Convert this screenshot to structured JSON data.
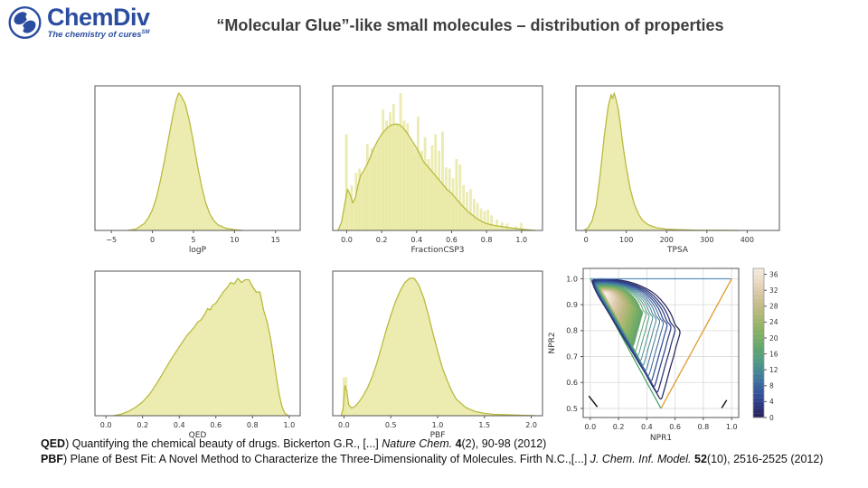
{
  "header": {
    "logo": {
      "name": "ChemDiv",
      "tagline": "The chemistry of cures",
      "tm": "SM"
    },
    "title": "“Molecular Glue”-like small molecules – distribution of properties"
  },
  "colors": {
    "brand_blue": "#2b4da0",
    "title_text": "#3d3d3d",
    "density_fill": "#e9e9a5",
    "density_edge": "#b9ba3f",
    "hist_fill": "#ebebb2",
    "axis": "#555555",
    "tick_text": "#333333",
    "grid": "#d9d9d9",
    "line_blue": "#5b8fc0",
    "line_orange": "#e2a23c",
    "line_green": "#3fa45c",
    "corner_mark": "#1a1a1a",
    "contour_cmap": [
      "#27255c",
      "#2f3a85",
      "#35549b",
      "#3d6e9c",
      "#468a93",
      "#529b82",
      "#62a56f",
      "#7bae64",
      "#97b468",
      "#b3b878",
      "#c9bd90",
      "#dcc9ab",
      "#ecdcc8",
      "#f6ece0"
    ]
  },
  "chart_data": [
    {
      "id": "logP",
      "type": "density",
      "xlabel": "logP",
      "xlim": [
        -7,
        18
      ],
      "xticks": [
        {
          "v": -5,
          "l": "−5"
        },
        {
          "v": 0,
          "l": "0"
        },
        {
          "v": 5,
          "l": "5"
        },
        {
          "v": 10,
          "l": "10"
        },
        {
          "v": 15,
          "l": "15"
        }
      ],
      "curve": [
        [
          -3,
          0
        ],
        [
          -2,
          0.01
        ],
        [
          -1,
          0.05
        ],
        [
          -0.5,
          0.09
        ],
        [
          0,
          0.15
        ],
        [
          0.5,
          0.24
        ],
        [
          1,
          0.37
        ],
        [
          1.5,
          0.52
        ],
        [
          2,
          0.68
        ],
        [
          2.5,
          0.84
        ],
        [
          2.9,
          0.95
        ],
        [
          3.2,
          1.0
        ],
        [
          3.5,
          0.98
        ],
        [
          4,
          0.92
        ],
        [
          4.5,
          0.8
        ],
        [
          5,
          0.64
        ],
        [
          5.5,
          0.47
        ],
        [
          6,
          0.32
        ],
        [
          6.5,
          0.2
        ],
        [
          7,
          0.12
        ],
        [
          7.5,
          0.07
        ],
        [
          8,
          0.04
        ],
        [
          9,
          0.015
        ],
        [
          10,
          0.005
        ],
        [
          11,
          0
        ]
      ]
    },
    {
      "id": "FractionCSP3",
      "type": "density",
      "xlabel": "FractionCSP3",
      "xlim": [
        -0.08,
        1.12
      ],
      "xticks": [
        {
          "v": 0.0,
          "l": "0.0"
        },
        {
          "v": 0.2,
          "l": "0.2"
        },
        {
          "v": 0.4,
          "l": "0.4"
        },
        {
          "v": 0.6,
          "l": "0.6"
        },
        {
          "v": 0.8,
          "l": "0.8"
        },
        {
          "v": 1.0,
          "l": "1.0"
        }
      ],
      "bar_width": 0.018,
      "bars": [
        [
          0.0,
          0.7
        ],
        [
          0.03,
          0.33
        ],
        [
          0.055,
          0.42
        ],
        [
          0.075,
          0.45
        ],
        [
          0.1,
          0.4
        ],
        [
          0.12,
          0.63
        ],
        [
          0.145,
          0.6
        ],
        [
          0.165,
          0.55
        ],
        [
          0.185,
          0.62
        ],
        [
          0.21,
          0.88
        ],
        [
          0.23,
          0.8
        ],
        [
          0.25,
          0.86
        ],
        [
          0.27,
          0.92
        ],
        [
          0.29,
          0.78
        ],
        [
          0.31,
          1.0
        ],
        [
          0.33,
          0.8
        ],
        [
          0.35,
          0.78
        ],
        [
          0.37,
          0.62
        ],
        [
          0.39,
          0.55
        ],
        [
          0.41,
          0.83
        ],
        [
          0.43,
          0.58
        ],
        [
          0.45,
          0.68
        ],
        [
          0.47,
          0.52
        ],
        [
          0.49,
          0.62
        ],
        [
          0.51,
          0.7
        ],
        [
          0.53,
          0.58
        ],
        [
          0.55,
          0.72
        ],
        [
          0.57,
          0.46
        ],
        [
          0.59,
          0.45
        ],
        [
          0.61,
          0.38
        ],
        [
          0.63,
          0.52
        ],
        [
          0.65,
          0.48
        ],
        [
          0.67,
          0.33
        ],
        [
          0.69,
          0.28
        ],
        [
          0.71,
          0.3
        ],
        [
          0.73,
          0.23
        ],
        [
          0.75,
          0.2
        ],
        [
          0.77,
          0.16
        ],
        [
          0.79,
          0.14
        ],
        [
          0.81,
          0.15
        ],
        [
          0.83,
          0.11
        ],
        [
          0.86,
          0.08
        ],
        [
          0.89,
          0.06
        ],
        [
          0.92,
          0.05
        ],
        [
          0.97,
          0.03
        ],
        [
          1.0,
          0.055
        ]
      ],
      "curve": [
        [
          -0.05,
          0
        ],
        [
          -0.03,
          0.06
        ],
        [
          -0.01,
          0.2
        ],
        [
          0.005,
          0.3
        ],
        [
          0.02,
          0.26
        ],
        [
          0.035,
          0.2
        ],
        [
          0.05,
          0.24
        ],
        [
          0.065,
          0.33
        ],
        [
          0.08,
          0.4
        ],
        [
          0.1,
          0.44
        ],
        [
          0.12,
          0.49
        ],
        [
          0.14,
          0.55
        ],
        [
          0.16,
          0.61
        ],
        [
          0.18,
          0.66
        ],
        [
          0.2,
          0.7
        ],
        [
          0.22,
          0.73
        ],
        [
          0.24,
          0.755
        ],
        [
          0.26,
          0.77
        ],
        [
          0.28,
          0.775
        ],
        [
          0.3,
          0.77
        ],
        [
          0.32,
          0.75
        ],
        [
          0.34,
          0.72
        ],
        [
          0.36,
          0.68
        ],
        [
          0.38,
          0.64
        ],
        [
          0.4,
          0.6
        ],
        [
          0.42,
          0.55
        ],
        [
          0.44,
          0.5
        ],
        [
          0.46,
          0.47
        ],
        [
          0.48,
          0.44
        ],
        [
          0.5,
          0.41
        ],
        [
          0.52,
          0.38
        ],
        [
          0.54,
          0.35
        ],
        [
          0.56,
          0.32
        ],
        [
          0.58,
          0.29
        ],
        [
          0.6,
          0.27
        ],
        [
          0.62,
          0.24
        ],
        [
          0.64,
          0.21
        ],
        [
          0.66,
          0.18
        ],
        [
          0.68,
          0.155
        ],
        [
          0.7,
          0.13
        ],
        [
          0.72,
          0.11
        ],
        [
          0.74,
          0.09
        ],
        [
          0.76,
          0.075
        ],
        [
          0.78,
          0.06
        ],
        [
          0.8,
          0.05
        ],
        [
          0.83,
          0.04
        ],
        [
          0.86,
          0.033
        ],
        [
          0.89,
          0.028
        ],
        [
          0.92,
          0.022
        ],
        [
          0.95,
          0.017
        ],
        [
          0.98,
          0.012
        ],
        [
          1.01,
          0.008
        ],
        [
          1.05,
          0.003
        ],
        [
          1.08,
          0
        ]
      ]
    },
    {
      "id": "TPSA",
      "type": "density",
      "xlabel": "TPSA",
      "xlim": [
        -25,
        480
      ],
      "xticks": [
        {
          "v": 0,
          "l": "0"
        },
        {
          "v": 100,
          "l": "100"
        },
        {
          "v": 200,
          "l": "200"
        },
        {
          "v": 300,
          "l": "300"
        },
        {
          "v": 400,
          "l": "400"
        }
      ],
      "curve": [
        [
          -5,
          0
        ],
        [
          5,
          0.02
        ],
        [
          15,
          0.07
        ],
        [
          25,
          0.18
        ],
        [
          35,
          0.4
        ],
        [
          45,
          0.68
        ],
        [
          55,
          0.9
        ],
        [
          62,
          0.99
        ],
        [
          66,
          0.96
        ],
        [
          70,
          1.0
        ],
        [
          74,
          0.96
        ],
        [
          80,
          0.88
        ],
        [
          85,
          0.78
        ],
        [
          90,
          0.66
        ],
        [
          95,
          0.55
        ],
        [
          100,
          0.46
        ],
        [
          110,
          0.3
        ],
        [
          120,
          0.19
        ],
        [
          130,
          0.12
        ],
        [
          140,
          0.075
        ],
        [
          150,
          0.05
        ],
        [
          160,
          0.035
        ],
        [
          175,
          0.02
        ],
        [
          200,
          0.01
        ],
        [
          230,
          0.005
        ],
        [
          270,
          0.002
        ],
        [
          320,
          0.001
        ],
        [
          380,
          0
        ]
      ]
    },
    {
      "id": "QED",
      "type": "density",
      "xlabel": "QED",
      "xlim": [
        -0.06,
        1.06
      ],
      "xticks": [
        {
          "v": 0.0,
          "l": "0.0"
        },
        {
          "v": 0.2,
          "l": "0.2"
        },
        {
          "v": 0.4,
          "l": "0.4"
        },
        {
          "v": 0.6,
          "l": "0.6"
        },
        {
          "v": 0.8,
          "l": "0.8"
        },
        {
          "v": 1.0,
          "l": "1.0"
        }
      ],
      "curve": [
        [
          0.04,
          0
        ],
        [
          0.08,
          0.01
        ],
        [
          0.12,
          0.03
        ],
        [
          0.16,
          0.06
        ],
        [
          0.2,
          0.1
        ],
        [
          0.24,
          0.16
        ],
        [
          0.28,
          0.24
        ],
        [
          0.32,
          0.33
        ],
        [
          0.36,
          0.42
        ],
        [
          0.4,
          0.5
        ],
        [
          0.44,
          0.58
        ],
        [
          0.48,
          0.64
        ],
        [
          0.5,
          0.68
        ],
        [
          0.52,
          0.7
        ],
        [
          0.54,
          0.74
        ],
        [
          0.555,
          0.78
        ],
        [
          0.57,
          0.77
        ],
        [
          0.58,
          0.8
        ],
        [
          0.6,
          0.82
        ],
        [
          0.62,
          0.86
        ],
        [
          0.64,
          0.9
        ],
        [
          0.66,
          0.93
        ],
        [
          0.68,
          0.97
        ],
        [
          0.7,
          0.96
        ],
        [
          0.72,
          1.0
        ],
        [
          0.74,
          0.97
        ],
        [
          0.76,
          0.99
        ],
        [
          0.78,
          0.99
        ],
        [
          0.8,
          0.94
        ],
        [
          0.82,
          0.9
        ],
        [
          0.84,
          0.9
        ],
        [
          0.85,
          0.84
        ],
        [
          0.86,
          0.77
        ],
        [
          0.88,
          0.68
        ],
        [
          0.9,
          0.55
        ],
        [
          0.915,
          0.42
        ],
        [
          0.93,
          0.28
        ],
        [
          0.945,
          0.16
        ],
        [
          0.96,
          0.07
        ],
        [
          0.975,
          0.02
        ],
        [
          0.995,
          0
        ]
      ]
    },
    {
      "id": "PBF",
      "type": "density",
      "xlabel": "PBF",
      "xlim": [
        -0.12,
        2.12
      ],
      "xticks": [
        {
          "v": 0.0,
          "l": "0.0"
        },
        {
          "v": 0.5,
          "l": "0.5"
        },
        {
          "v": 1.0,
          "l": "1.0"
        },
        {
          "v": 1.5,
          "l": "1.5"
        },
        {
          "v": 2.0,
          "l": "2.0"
        }
      ],
      "bar_width": 0.055,
      "bars": [
        [
          0.015,
          0.28
        ]
      ],
      "curve": [
        [
          -0.03,
          0
        ],
        [
          -0.01,
          0.05
        ],
        [
          0.01,
          0.22
        ],
        [
          0.03,
          0.18
        ],
        [
          0.05,
          0.08
        ],
        [
          0.08,
          0.055
        ],
        [
          0.12,
          0.07
        ],
        [
          0.16,
          0.1
        ],
        [
          0.2,
          0.14
        ],
        [
          0.25,
          0.2
        ],
        [
          0.3,
          0.28
        ],
        [
          0.35,
          0.38
        ],
        [
          0.4,
          0.5
        ],
        [
          0.45,
          0.62
        ],
        [
          0.5,
          0.73
        ],
        [
          0.55,
          0.83
        ],
        [
          0.6,
          0.91
        ],
        [
          0.65,
          0.97
        ],
        [
          0.7,
          1.0
        ],
        [
          0.75,
          1.0
        ],
        [
          0.8,
          0.95
        ],
        [
          0.85,
          0.86
        ],
        [
          0.9,
          0.74
        ],
        [
          0.95,
          0.6
        ],
        [
          1.0,
          0.47
        ],
        [
          1.05,
          0.35
        ],
        [
          1.1,
          0.26
        ],
        [
          1.15,
          0.18
        ],
        [
          1.2,
          0.12
        ],
        [
          1.3,
          0.06
        ],
        [
          1.4,
          0.03
        ],
        [
          1.5,
          0.017
        ],
        [
          1.6,
          0.01
        ],
        [
          1.8,
          0.005
        ],
        [
          2.05,
          0
        ]
      ]
    },
    {
      "id": "NPR",
      "type": "contour",
      "xlabel": "NPR1",
      "ylabel": "NPR2",
      "xlim": [
        -0.05,
        1.05
      ],
      "ylim": [
        0.465,
        1.04
      ],
      "xticks": [
        {
          "v": 0.0,
          "l": "0.0"
        },
        {
          "v": 0.2,
          "l": "0.2"
        },
        {
          "v": 0.4,
          "l": "0.4"
        },
        {
          "v": 0.6,
          "l": "0.6"
        },
        {
          "v": 0.8,
          "l": "0.8"
        },
        {
          "v": 1.0,
          "l": "1.0"
        }
      ],
      "yticks": [
        {
          "v": 0.5,
          "l": "0.5"
        },
        {
          "v": 0.6,
          "l": "0.6"
        },
        {
          "v": 0.7,
          "l": "0.7"
        },
        {
          "v": 0.8,
          "l": "0.8"
        },
        {
          "v": 0.9,
          "l": "0.9"
        },
        {
          "v": 1.0,
          "l": "1.0"
        }
      ],
      "boundary": [
        [
          0.01,
          1.0
        ],
        [
          0.12,
          1.0
        ],
        [
          0.22,
          0.995
        ],
        [
          0.3,
          0.985
        ],
        [
          0.37,
          0.97
        ],
        [
          0.44,
          0.95
        ],
        [
          0.5,
          0.92
        ],
        [
          0.55,
          0.885
        ],
        [
          0.58,
          0.855
        ],
        [
          0.6,
          0.82
        ],
        [
          0.64,
          0.8
        ],
        [
          0.625,
          0.77
        ],
        [
          0.605,
          0.735
        ],
        [
          0.59,
          0.7
        ],
        [
          0.57,
          0.665
        ],
        [
          0.55,
          0.625
        ],
        [
          0.53,
          0.585
        ],
        [
          0.515,
          0.555
        ],
        [
          0.5,
          0.53
        ],
        [
          0.475,
          0.555
        ],
        [
          0.44,
          0.585
        ],
        [
          0.4,
          0.625
        ],
        [
          0.35,
          0.67
        ],
        [
          0.3,
          0.715
        ],
        [
          0.25,
          0.76
        ],
        [
          0.2,
          0.805
        ],
        [
          0.15,
          0.85
        ],
        [
          0.1,
          0.895
        ],
        [
          0.05,
          0.94
        ],
        [
          0.02,
          0.975
        ]
      ],
      "center": [
        0.105,
        0.945
      ],
      "levels": 22,
      "fill_start": 10,
      "ref_lines": {
        "top": [
          [
            0.0,
            1.0
          ],
          [
            1.0,
            1.0
          ]
        ],
        "right": [
          [
            0.5,
            0.5
          ],
          [
            1.0,
            1.0
          ]
        ],
        "left": [
          [
            0.0,
            1.0
          ],
          [
            0.5,
            0.5
          ]
        ]
      },
      "corner_marks": [
        [
          [
            -0.01,
            0.548
          ],
          [
            0.05,
            0.506
          ]
        ],
        [
          [
            0.93,
            0.502
          ],
          [
            0.965,
            0.532
          ]
        ]
      ],
      "colorbar": {
        "ticks": [
          0,
          4,
          8,
          12,
          16,
          20,
          24,
          28,
          32,
          36
        ],
        "vmax": 37.5
      }
    }
  ],
  "citations": [
    [
      {
        "t": "QED",
        "b": true
      },
      {
        "t": ") Quantifying the chemical beauty of drugs. Bickerton G.R., [...] "
      },
      {
        "t": "Nature Chem.",
        "i": true
      },
      {
        "t": " "
      },
      {
        "t": "4",
        "b": true
      },
      {
        "t": "(2), 90-98 (2012)"
      }
    ],
    [
      {
        "t": "PBF",
        "b": true
      },
      {
        "t": ") Plane of Best Fit: A Novel Method to Characterize the Three-Dimensionality of Molecules. Firth N.C.,[...] "
      },
      {
        "t": "J. Chem. Inf. Model.",
        "i": true
      },
      {
        "t": " "
      },
      {
        "t": "52",
        "b": true
      },
      {
        "t": "(10), 2516-2525 (2012)"
      }
    ]
  ]
}
